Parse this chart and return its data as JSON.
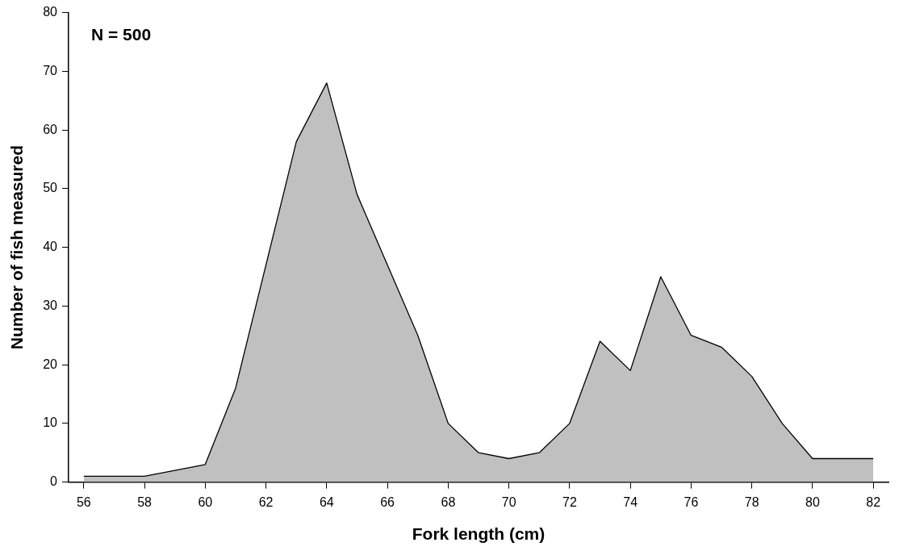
{
  "chart_data": {
    "type": "area",
    "xlabel": "Fork length (cm)",
    "ylabel": "Number of fish measured",
    "annotations": [
      "N = 500"
    ],
    "x": [
      56,
      57,
      58,
      59,
      60,
      61,
      62,
      63,
      64,
      65,
      66,
      67,
      68,
      69,
      70,
      71,
      72,
      73,
      74,
      75,
      76,
      77,
      78,
      79,
      80,
      81,
      82
    ],
    "series": [
      {
        "color": "#c0c0c0",
        "values": [
          1,
          1,
          1,
          2,
          3,
          16,
          37,
          58,
          68,
          49,
          37,
          25,
          10,
          5,
          4,
          5,
          10,
          24,
          19,
          35,
          25,
          23,
          18,
          10,
          4,
          4,
          4
        ]
      }
    ],
    "xlim": [
      55.5,
      82.5
    ],
    "xticks": [
      56,
      58,
      60,
      62,
      64,
      66,
      68,
      70,
      72,
      74,
      76,
      78,
      80,
      82
    ],
    "ylim": [
      0,
      80
    ],
    "yticks": [
      0,
      10,
      20,
      30,
      40,
      50,
      60,
      70,
      80
    ],
    "grid": false,
    "legend": false,
    "marker": "none",
    "line_style": "solid"
  }
}
